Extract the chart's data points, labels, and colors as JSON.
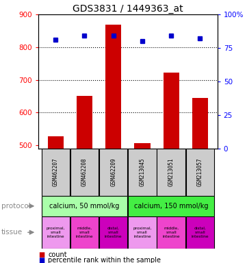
{
  "title": "GDS3831 / 1449363_at",
  "samples": [
    "GSM462207",
    "GSM462208",
    "GSM462209",
    "GSM213045",
    "GSM213051",
    "GSM213057"
  ],
  "counts": [
    527,
    651,
    868,
    507,
    722,
    645
  ],
  "percentiles": [
    81,
    84,
    84,
    80,
    84,
    82
  ],
  "ylim_left": [
    490,
    900
  ],
  "ylim_right": [
    0,
    100
  ],
  "yticks_left": [
    500,
    600,
    700,
    800,
    900
  ],
  "yticks_right": [
    0,
    25,
    50,
    75,
    100
  ],
  "bar_color": "#cc0000",
  "dot_color": "#0000cc",
  "protocol_labels": [
    "calcium, 50 mmol/kg",
    "calcium, 150 mmol/kg"
  ],
  "protocol_color1": "#aaffaa",
  "protocol_color2": "#44ee44",
  "tissue_labels": [
    "proximal,\nsmall\nintestine",
    "middle,\nsmall\nintestine",
    "distal,\nsmall\nintestine",
    "proximal,\nsmall\nintestine",
    "middle,\nsmall\nintestine",
    "distal,\nsmall\nintestine"
  ],
  "tissue_colors": [
    "#ee99ee",
    "#ee44cc",
    "#cc00bb",
    "#ee99ee",
    "#ee44cc",
    "#cc00bb"
  ],
  "bg_color": "#ffffff",
  "sample_box_color": "#cccccc",
  "left_label_color": "#888888",
  "title_fontsize": 10,
  "bar_width": 0.55
}
